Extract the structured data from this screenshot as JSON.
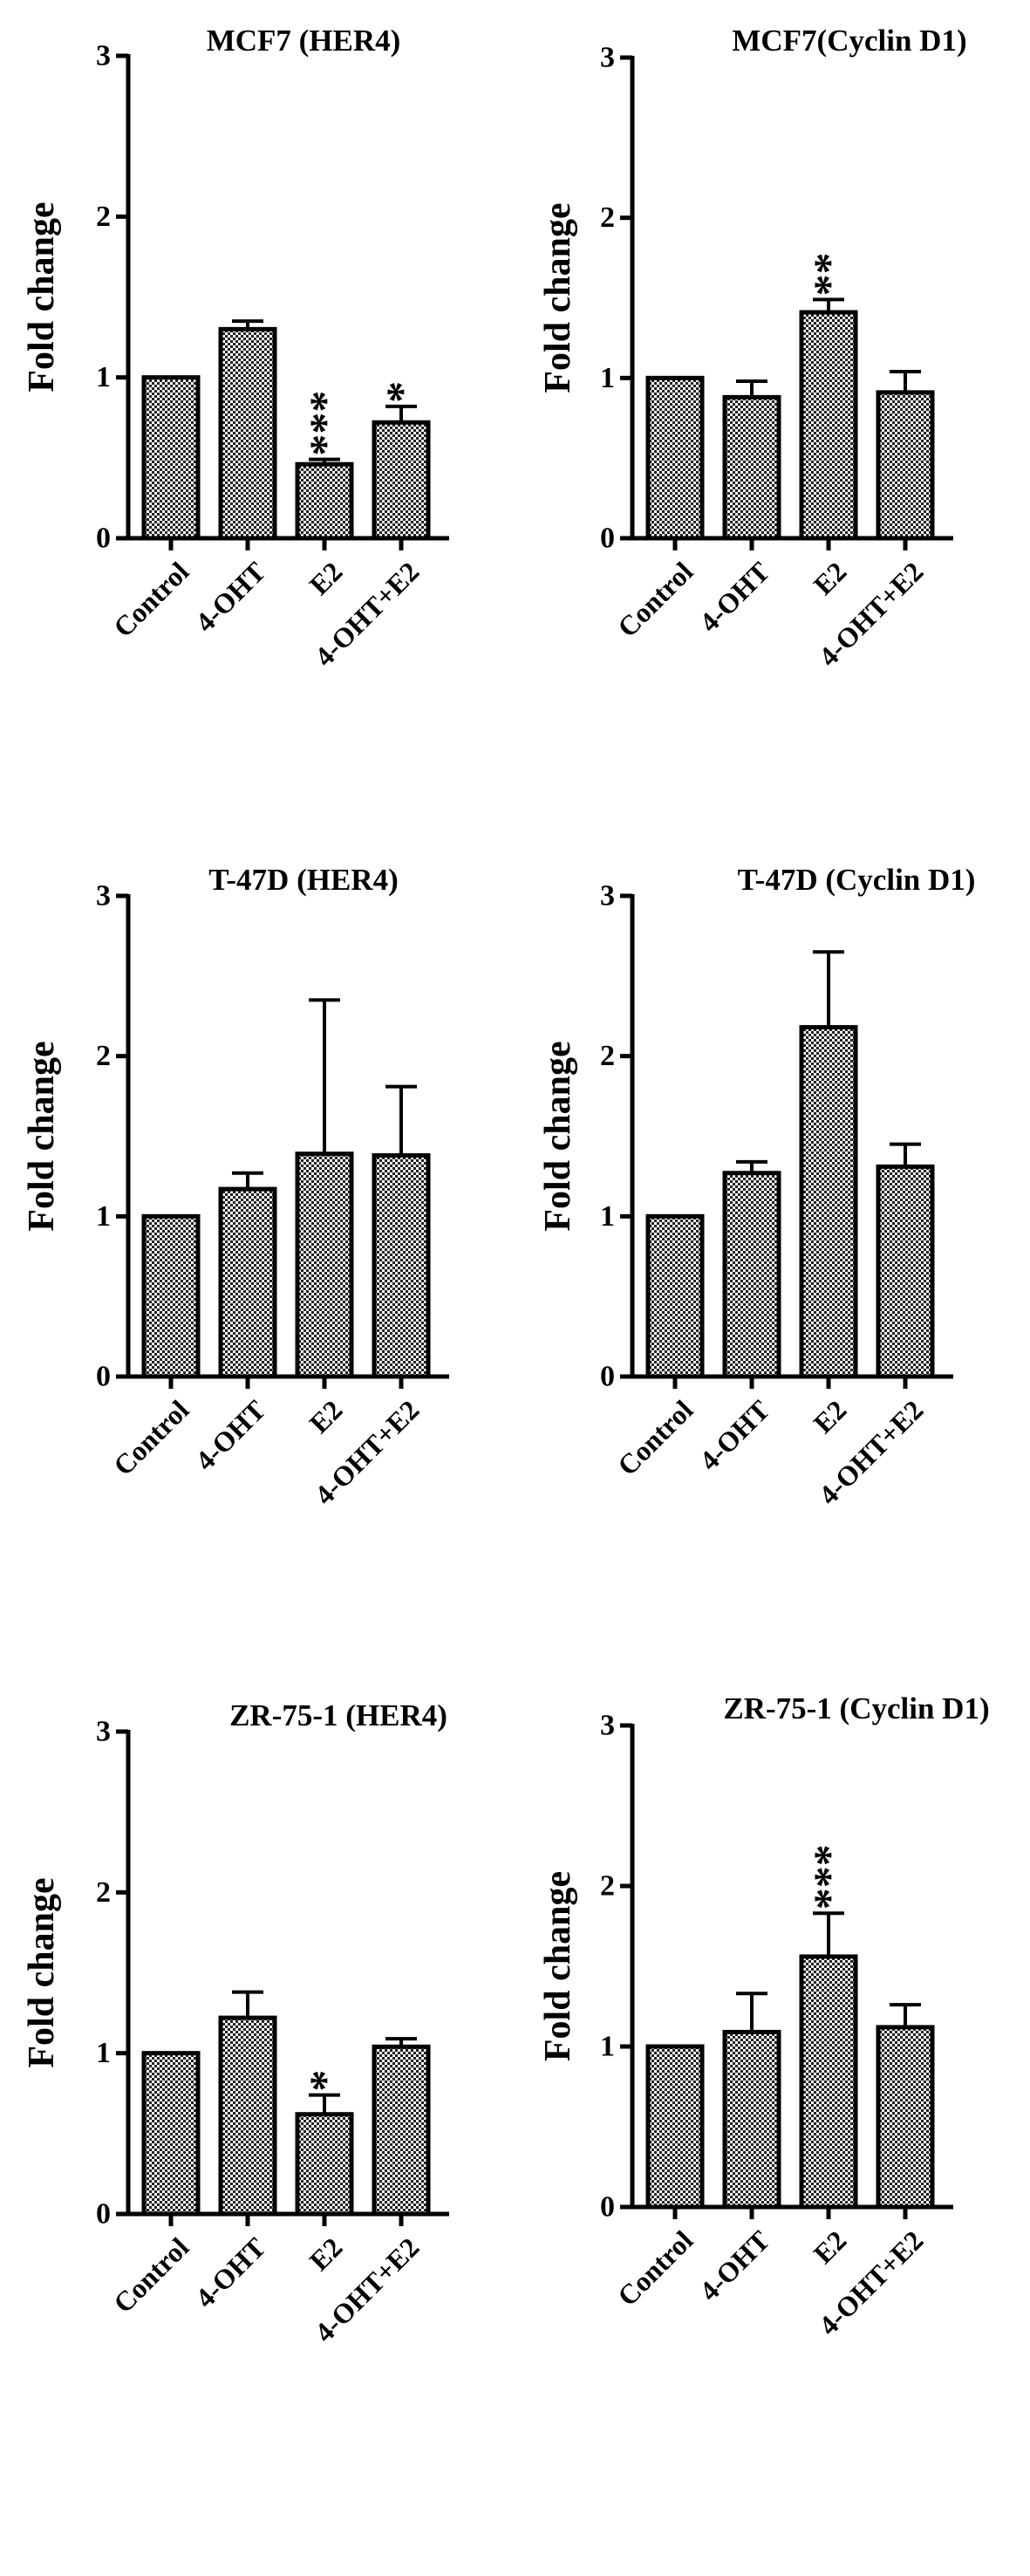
{
  "chart_data": [
    {
      "type": "bar",
      "title": "MCF7 (HER4)",
      "ylabel": "Fold change",
      "ylim": [
        0,
        3
      ],
      "yticks": [
        0,
        1,
        2,
        3
      ],
      "categories": [
        "Control",
        "4-OHT",
        "E2",
        "4-OHT+E2"
      ],
      "values": [
        1.0,
        1.3,
        0.46,
        0.72
      ],
      "errors": [
        0,
        0.05,
        0.03,
        0.1
      ],
      "significance": [
        "",
        "",
        "***",
        "*"
      ],
      "grid": false,
      "bar_fill": "checkerboard"
    },
    {
      "type": "bar",
      "title": "MCF7(Cyclin D1)",
      "ylabel": "Fold change",
      "ylim": [
        0,
        3
      ],
      "yticks": [
        0,
        1,
        2,
        3
      ],
      "categories": [
        "Control",
        "4-OHT",
        "E2",
        "4-OHT+E2"
      ],
      "values": [
        1.0,
        0.88,
        1.41,
        0.91
      ],
      "errors": [
        0,
        0.1,
        0.08,
        0.13
      ],
      "significance": [
        "",
        "",
        "**",
        ""
      ],
      "grid": false,
      "bar_fill": "checkerboard"
    },
    {
      "type": "bar",
      "title": "T-47D (HER4)",
      "ylabel": "Fold change",
      "ylim": [
        0,
        3
      ],
      "yticks": [
        0,
        1,
        2,
        3
      ],
      "categories": [
        "Control",
        "4-OHT",
        "E2",
        "4-OHT+E2"
      ],
      "values": [
        1.0,
        1.17,
        1.39,
        1.38
      ],
      "errors": [
        0,
        0.1,
        0.96,
        0.43
      ],
      "significance": [
        "",
        "",
        "",
        ""
      ],
      "grid": false,
      "bar_fill": "checkerboard"
    },
    {
      "type": "bar",
      "title": "T-47D (Cyclin D1)",
      "ylabel": "Fold change",
      "ylim": [
        0,
        3
      ],
      "yticks": [
        0,
        1,
        2,
        3
      ],
      "categories": [
        "Control",
        "4-OHT",
        "E2",
        "4-OHT+E2"
      ],
      "values": [
        1.0,
        1.27,
        2.18,
        1.31
      ],
      "errors": [
        0,
        0.07,
        0.47,
        0.14
      ],
      "significance": [
        "",
        "",
        "",
        ""
      ],
      "grid": false,
      "bar_fill": "checkerboard"
    },
    {
      "type": "bar",
      "title": "ZR-75-1 (HER4)",
      "ylabel": "Fold change",
      "ylim": [
        0,
        3
      ],
      "yticks": [
        0,
        1,
        2,
        3
      ],
      "categories": [
        "Control",
        "4-OHT",
        "E2",
        "4-OHT+E2"
      ],
      "values": [
        1.0,
        1.22,
        0.62,
        1.04
      ],
      "errors": [
        0,
        0.16,
        0.12,
        0.05
      ],
      "significance": [
        "",
        "",
        "*",
        ""
      ],
      "grid": false,
      "bar_fill": "checkerboard"
    },
    {
      "type": "bar",
      "title": "ZR-75-1 (Cyclin D1)",
      "ylabel": "Fold change",
      "ylim": [
        0,
        3
      ],
      "yticks": [
        0,
        1,
        2,
        3
      ],
      "categories": [
        "Control",
        "4-OHT",
        "E2",
        "4-OHT+E2"
      ],
      "values": [
        1.0,
        1.09,
        1.56,
        1.12
      ],
      "errors": [
        0,
        0.24,
        0.27,
        0.14
      ],
      "significance": [
        "",
        "",
        "***",
        ""
      ],
      "grid": false,
      "bar_fill": "checkerboard"
    }
  ]
}
